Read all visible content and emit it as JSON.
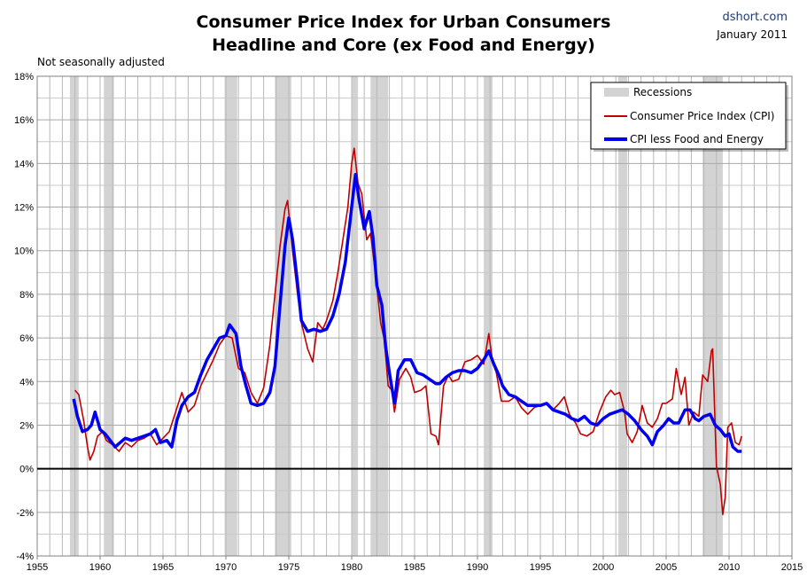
{
  "header": {
    "title_line1": "Consumer Price Index for Urban Consumers",
    "title_line2": "Headline and Core (ex Food and Energy)",
    "source": "dshort.com",
    "date": "January 2011",
    "note": "Not seasonally adjusted"
  },
  "chart_data": {
    "type": "line",
    "title": "Consumer Price Index for Urban Consumers Headline and Core (ex Food and Energy)",
    "xlim": [
      1955,
      2015
    ],
    "ylim": [
      -4,
      18
    ],
    "x_ticks": [
      "1955",
      "1960",
      "1965",
      "1970",
      "1975",
      "1980",
      "1985",
      "1990",
      "1995",
      "2000",
      "2005",
      "2010",
      "2015"
    ],
    "y_ticks": [
      "18%",
      "16%",
      "14%",
      "12%",
      "10%",
      "8%",
      "6%",
      "4%",
      "2%",
      "0%",
      "-2%",
      "-4%"
    ],
    "grid": true,
    "legend_position": "top-right",
    "legend": {
      "recessions": "Recessions",
      "cpi": "Consumer Price Index (CPI)",
      "core": "CPI less Food and Energy"
    },
    "colors": {
      "cpi": "#c00000",
      "core": "#0000ee",
      "recession": "#d3d3d3"
    },
    "recessions": [
      [
        1957.6,
        1958.3
      ],
      [
        1960.3,
        1961.1
      ],
      [
        1969.9,
        1970.9
      ],
      [
        1973.9,
        1975.2
      ],
      [
        1980.0,
        1980.5
      ],
      [
        1981.5,
        1982.9
      ],
      [
        1990.5,
        1991.2
      ],
      [
        2001.2,
        2001.9
      ],
      [
        2007.9,
        2009.5
      ]
    ],
    "series": [
      {
        "name": "Consumer Price Index (CPI)",
        "points": [
          [
            1958.0,
            3.6
          ],
          [
            1958.3,
            3.4
          ],
          [
            1958.7,
            2.2
          ],
          [
            1959.0,
            1.0
          ],
          [
            1959.2,
            0.4
          ],
          [
            1959.5,
            0.8
          ],
          [
            1959.8,
            1.5
          ],
          [
            1960.2,
            1.7
          ],
          [
            1960.5,
            1.3
          ],
          [
            1961.0,
            1.1
          ],
          [
            1961.5,
            0.8
          ],
          [
            1962.0,
            1.2
          ],
          [
            1962.5,
            1.0
          ],
          [
            1963.0,
            1.3
          ],
          [
            1963.5,
            1.4
          ],
          [
            1964.0,
            1.6
          ],
          [
            1964.5,
            1.1
          ],
          [
            1965.0,
            1.4
          ],
          [
            1965.5,
            1.7
          ],
          [
            1966.0,
            2.6
          ],
          [
            1966.5,
            3.5
          ],
          [
            1967.0,
            2.6
          ],
          [
            1967.5,
            2.9
          ],
          [
            1968.0,
            3.8
          ],
          [
            1968.5,
            4.4
          ],
          [
            1969.0,
            5.0
          ],
          [
            1969.5,
            5.7
          ],
          [
            1970.0,
            6.1
          ],
          [
            1970.5,
            6.0
          ],
          [
            1971.0,
            4.6
          ],
          [
            1971.5,
            4.4
          ],
          [
            1972.0,
            3.5
          ],
          [
            1972.5,
            3.0
          ],
          [
            1973.0,
            3.7
          ],
          [
            1973.5,
            5.7
          ],
          [
            1973.9,
            8.0
          ],
          [
            1974.3,
            10.2
          ],
          [
            1974.7,
            11.9
          ],
          [
            1974.9,
            12.3
          ],
          [
            1975.3,
            10.0
          ],
          [
            1975.7,
            8.0
          ],
          [
            1976.0,
            6.7
          ],
          [
            1976.5,
            5.5
          ],
          [
            1976.9,
            4.9
          ],
          [
            1977.3,
            6.7
          ],
          [
            1977.7,
            6.4
          ],
          [
            1978.0,
            6.8
          ],
          [
            1978.5,
            7.7
          ],
          [
            1978.9,
            9.0
          ],
          [
            1979.3,
            10.5
          ],
          [
            1979.7,
            12.0
          ],
          [
            1980.0,
            14.0
          ],
          [
            1980.2,
            14.7
          ],
          [
            1980.5,
            13.1
          ],
          [
            1980.8,
            12.6
          ],
          [
            1981.2,
            10.5
          ],
          [
            1981.5,
            10.8
          ],
          [
            1981.9,
            8.9
          ],
          [
            1982.3,
            6.7
          ],
          [
            1982.6,
            5.9
          ],
          [
            1982.9,
            3.8
          ],
          [
            1983.2,
            3.6
          ],
          [
            1983.4,
            2.6
          ],
          [
            1983.8,
            4.1
          ],
          [
            1984.3,
            4.6
          ],
          [
            1984.7,
            4.2
          ],
          [
            1985.0,
            3.5
          ],
          [
            1985.5,
            3.6
          ],
          [
            1985.9,
            3.8
          ],
          [
            1986.3,
            1.6
          ],
          [
            1986.7,
            1.5
          ],
          [
            1986.9,
            1.1
          ],
          [
            1987.3,
            3.8
          ],
          [
            1987.7,
            4.3
          ],
          [
            1988.0,
            4.0
          ],
          [
            1988.5,
            4.1
          ],
          [
            1989.0,
            4.9
          ],
          [
            1989.5,
            5.0
          ],
          [
            1990.0,
            5.2
          ],
          [
            1990.5,
            4.8
          ],
          [
            1990.9,
            6.2
          ],
          [
            1991.2,
            4.9
          ],
          [
            1991.5,
            4.4
          ],
          [
            1991.9,
            3.1
          ],
          [
            1992.5,
            3.1
          ],
          [
            1993.0,
            3.3
          ],
          [
            1993.5,
            2.8
          ],
          [
            1994.0,
            2.5
          ],
          [
            1994.5,
            2.8
          ],
          [
            1995.0,
            2.9
          ],
          [
            1995.5,
            3.0
          ],
          [
            1996.0,
            2.7
          ],
          [
            1996.5,
            3.0
          ],
          [
            1996.9,
            3.3
          ],
          [
            1997.3,
            2.5
          ],
          [
            1997.8,
            2.1
          ],
          [
            1998.2,
            1.6
          ],
          [
            1998.7,
            1.5
          ],
          [
            1999.2,
            1.7
          ],
          [
            1999.7,
            2.6
          ],
          [
            2000.2,
            3.3
          ],
          [
            2000.6,
            3.6
          ],
          [
            2000.9,
            3.4
          ],
          [
            2001.3,
            3.5
          ],
          [
            2001.7,
            2.6
          ],
          [
            2001.9,
            1.6
          ],
          [
            2002.3,
            1.2
          ],
          [
            2002.7,
            1.7
          ],
          [
            2003.1,
            2.9
          ],
          [
            2003.5,
            2.1
          ],
          [
            2003.9,
            1.9
          ],
          [
            2004.3,
            2.3
          ],
          [
            2004.7,
            3.0
          ],
          [
            2005.0,
            3.0
          ],
          [
            2005.5,
            3.2
          ],
          [
            2005.8,
            4.6
          ],
          [
            2006.2,
            3.4
          ],
          [
            2006.5,
            4.2
          ],
          [
            2006.8,
            2.0
          ],
          [
            2007.2,
            2.6
          ],
          [
            2007.6,
            2.4
          ],
          [
            2007.9,
            4.3
          ],
          [
            2008.3,
            4.0
          ],
          [
            2008.6,
            5.4
          ],
          [
            2008.7,
            5.5
          ],
          [
            2009.0,
            0.1
          ],
          [
            2009.3,
            -0.7
          ],
          [
            2009.5,
            -2.1
          ],
          [
            2009.7,
            -1.3
          ],
          [
            2009.9,
            1.9
          ],
          [
            2010.2,
            2.1
          ],
          [
            2010.5,
            1.2
          ],
          [
            2010.8,
            1.1
          ],
          [
            2011.0,
            1.5
          ]
        ]
      },
      {
        "name": "CPI less Food and Energy",
        "points": [
          [
            1957.9,
            3.2
          ],
          [
            1958.2,
            2.4
          ],
          [
            1958.6,
            1.7
          ],
          [
            1959.0,
            1.8
          ],
          [
            1959.3,
            2.0
          ],
          [
            1959.6,
            2.6
          ],
          [
            1960.0,
            1.8
          ],
          [
            1960.4,
            1.6
          ],
          [
            1960.8,
            1.3
          ],
          [
            1961.2,
            1.0
          ],
          [
            1961.6,
            1.2
          ],
          [
            1962.0,
            1.4
          ],
          [
            1962.5,
            1.3
          ],
          [
            1963.0,
            1.4
          ],
          [
            1963.5,
            1.5
          ],
          [
            1964.0,
            1.6
          ],
          [
            1964.4,
            1.8
          ],
          [
            1964.8,
            1.2
          ],
          [
            1965.3,
            1.3
          ],
          [
            1965.7,
            1.0
          ],
          [
            1966.1,
            2.2
          ],
          [
            1966.5,
            2.9
          ],
          [
            1967.0,
            3.3
          ],
          [
            1967.5,
            3.5
          ],
          [
            1968.0,
            4.3
          ],
          [
            1968.5,
            5.0
          ],
          [
            1969.0,
            5.5
          ],
          [
            1969.5,
            6.0
          ],
          [
            1970.0,
            6.1
          ],
          [
            1970.3,
            6.6
          ],
          [
            1970.8,
            6.2
          ],
          [
            1971.2,
            4.7
          ],
          [
            1971.6,
            3.8
          ],
          [
            1972.0,
            3.0
          ],
          [
            1972.5,
            2.9
          ],
          [
            1973.0,
            3.0
          ],
          [
            1973.5,
            3.5
          ],
          [
            1973.9,
            4.7
          ],
          [
            1974.3,
            7.5
          ],
          [
            1974.7,
            10.2
          ],
          [
            1975.0,
            11.5
          ],
          [
            1975.3,
            10.5
          ],
          [
            1975.7,
            8.5
          ],
          [
            1976.0,
            6.8
          ],
          [
            1976.5,
            6.3
          ],
          [
            1977.0,
            6.4
          ],
          [
            1977.5,
            6.3
          ],
          [
            1978.0,
            6.4
          ],
          [
            1978.5,
            7.0
          ],
          [
            1979.0,
            8.0
          ],
          [
            1979.5,
            9.5
          ],
          [
            1980.0,
            12.0
          ],
          [
            1980.3,
            13.5
          ],
          [
            1980.6,
            12.3
          ],
          [
            1981.0,
            11.0
          ],
          [
            1981.4,
            11.8
          ],
          [
            1981.7,
            10.6
          ],
          [
            1982.0,
            8.4
          ],
          [
            1982.4,
            7.5
          ],
          [
            1982.7,
            5.6
          ],
          [
            1983.0,
            4.4
          ],
          [
            1983.4,
            3.0
          ],
          [
            1983.7,
            4.5
          ],
          [
            1984.2,
            5.0
          ],
          [
            1984.7,
            5.0
          ],
          [
            1985.2,
            4.4
          ],
          [
            1985.7,
            4.3
          ],
          [
            1986.2,
            4.1
          ],
          [
            1986.7,
            3.9
          ],
          [
            1987.0,
            3.9
          ],
          [
            1987.5,
            4.2
          ],
          [
            1988.0,
            4.4
          ],
          [
            1988.5,
            4.5
          ],
          [
            1989.0,
            4.5
          ],
          [
            1989.5,
            4.4
          ],
          [
            1990.0,
            4.6
          ],
          [
            1990.5,
            5.0
          ],
          [
            1990.9,
            5.4
          ],
          [
            1991.3,
            4.8
          ],
          [
            1991.7,
            4.3
          ],
          [
            1992.0,
            3.8
          ],
          [
            1992.5,
            3.4
          ],
          [
            1993.0,
            3.3
          ],
          [
            1993.5,
            3.1
          ],
          [
            1994.0,
            2.9
          ],
          [
            1994.5,
            2.9
          ],
          [
            1995.0,
            2.9
          ],
          [
            1995.5,
            3.0
          ],
          [
            1996.0,
            2.7
          ],
          [
            1996.5,
            2.6
          ],
          [
            1997.0,
            2.5
          ],
          [
            1997.5,
            2.3
          ],
          [
            1998.0,
            2.2
          ],
          [
            1998.5,
            2.4
          ],
          [
            1999.0,
            2.1
          ],
          [
            1999.5,
            2.0
          ],
          [
            2000.0,
            2.3
          ],
          [
            2000.5,
            2.5
          ],
          [
            2001.0,
            2.6
          ],
          [
            2001.5,
            2.7
          ],
          [
            2002.0,
            2.5
          ],
          [
            2002.5,
            2.2
          ],
          [
            2003.0,
            1.8
          ],
          [
            2003.5,
            1.5
          ],
          [
            2003.9,
            1.1
          ],
          [
            2004.3,
            1.7
          ],
          [
            2004.8,
            2.0
          ],
          [
            2005.2,
            2.3
          ],
          [
            2005.6,
            2.1
          ],
          [
            2006.0,
            2.1
          ],
          [
            2006.5,
            2.7
          ],
          [
            2006.9,
            2.7
          ],
          [
            2007.3,
            2.3
          ],
          [
            2007.6,
            2.2
          ],
          [
            2008.0,
            2.4
          ],
          [
            2008.5,
            2.5
          ],
          [
            2008.9,
            2.0
          ],
          [
            2009.3,
            1.8
          ],
          [
            2009.7,
            1.5
          ],
          [
            2010.0,
            1.6
          ],
          [
            2010.3,
            1.0
          ],
          [
            2010.7,
            0.8
          ],
          [
            2011.0,
            0.8
          ]
        ]
      }
    ]
  }
}
